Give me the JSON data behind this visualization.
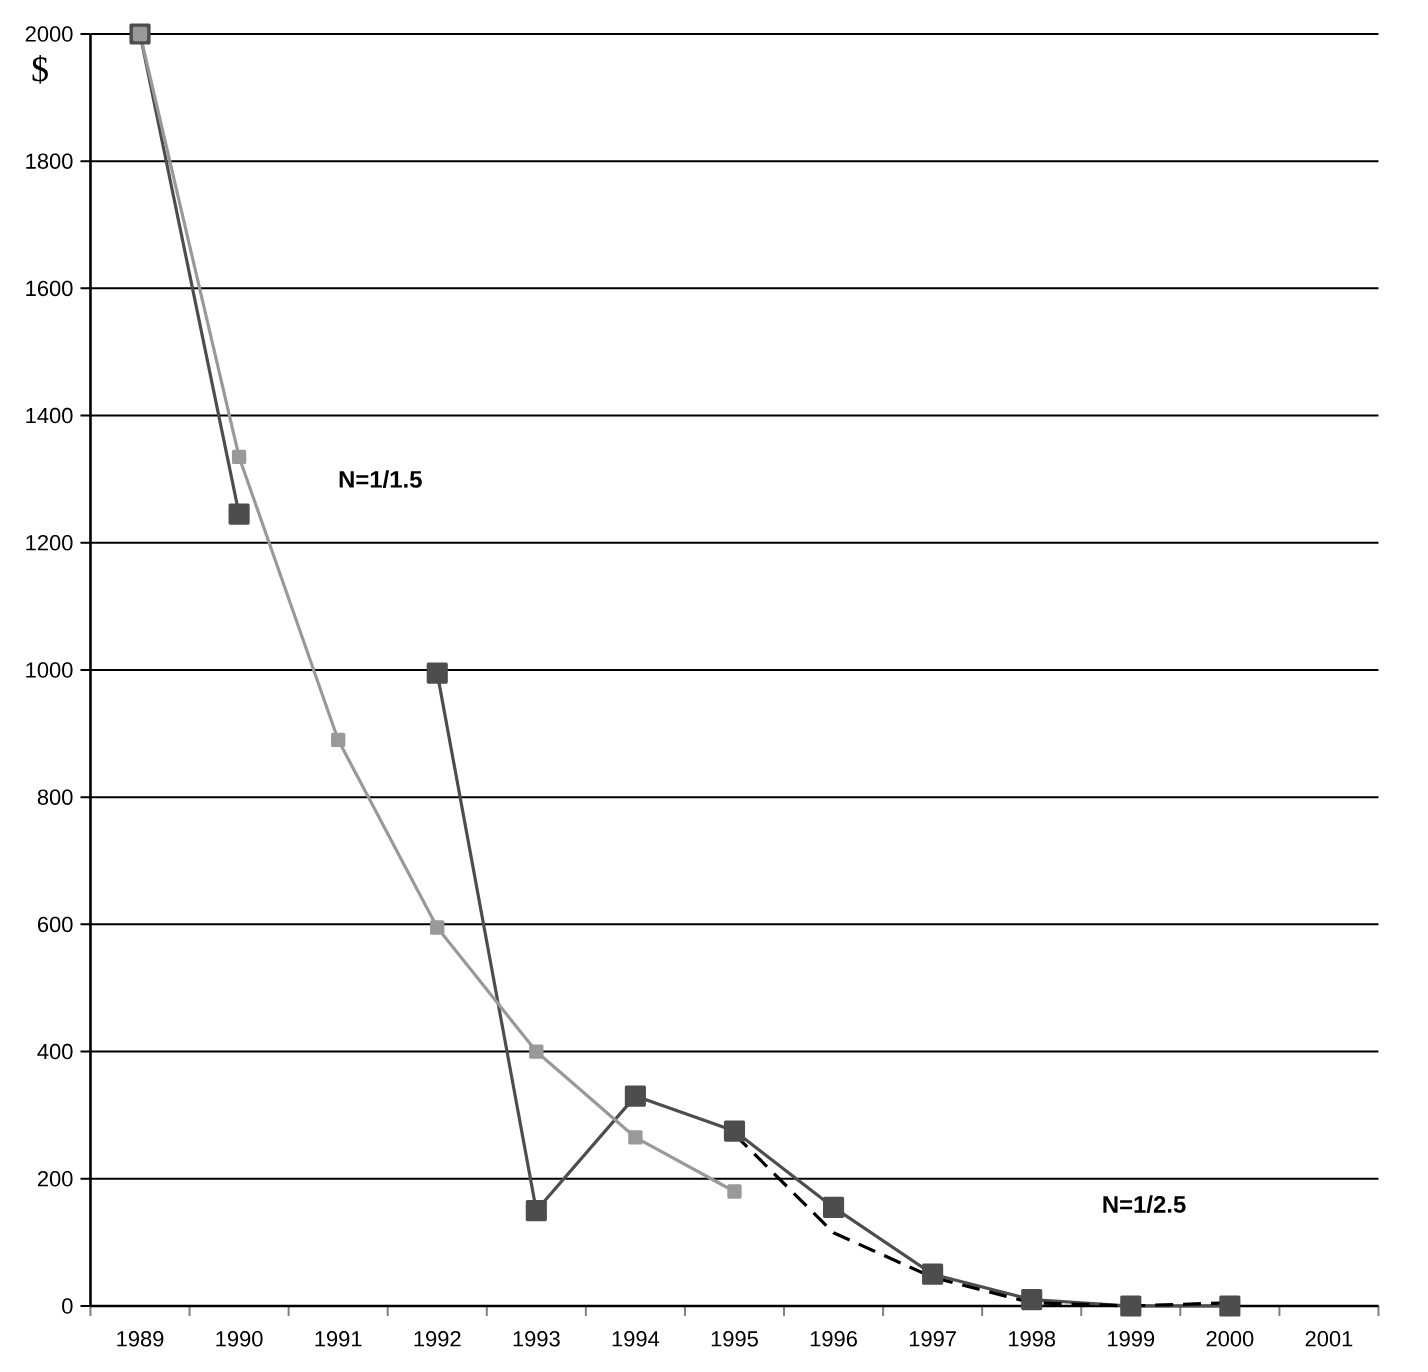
{
  "chart_data": {
    "type": "line",
    "ylabel": "$",
    "categories": [
      "1989",
      "1990",
      "1991",
      "1992",
      "1993",
      "1994",
      "1995",
      "1996",
      "1997",
      "1998",
      "1999",
      "2000",
      "2001"
    ],
    "series": [
      {
        "color": "#4d4d4d",
        "marker": "square",
        "values": [
          2000,
          1245,
          null,
          995,
          150,
          330,
          275,
          155,
          50,
          10,
          0,
          0,
          null
        ]
      },
      {
        "color": "#999999",
        "marker": "square",
        "values": [
          2000,
          1335,
          890,
          595,
          400,
          265,
          180,
          null,
          null,
          null,
          null,
          null,
          null
        ]
      },
      {
        "color": "#000000",
        "marker": "none",
        "line_style": "dashed",
        "values": [
          null,
          null,
          null,
          null,
          null,
          null,
          270,
          115,
          45,
          5,
          0,
          5,
          null
        ]
      }
    ],
    "ylim": [
      0,
      2000
    ],
    "yticks": [
      0,
      200,
      400,
      600,
      800,
      1000,
      1200,
      1400,
      1600,
      1800,
      2000
    ],
    "grid": "y",
    "annotations": [
      "N=1/1.5",
      "N=1/2.5"
    ]
  }
}
